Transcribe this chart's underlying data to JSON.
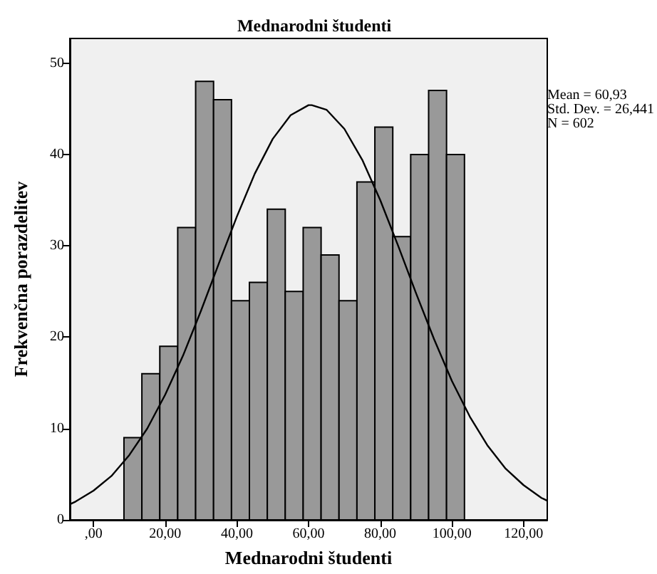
{
  "chart_data": {
    "type": "histogram",
    "title": "Mednarodni študenti",
    "xlabel": "Mednarodni študenti",
    "ylabel": "Frekvenčna porazdelitev",
    "annotations": [
      "Mean = 60,93\nStd. Dev. = 26,441\nN = 602"
    ],
    "xlim": [
      -6.6,
      126.6
    ],
    "xticks": [
      {
        "value": 0,
        "label": ",00"
      },
      {
        "value": 20,
        "label": "20,00"
      },
      {
        "value": 40,
        "label": "40,00"
      },
      {
        "value": 60,
        "label": "60,00"
      },
      {
        "value": 80,
        "label": "80,00"
      },
      {
        "value": 100,
        "label": "100,00"
      },
      {
        "value": 120,
        "label": "120,00"
      }
    ],
    "ylim": [
      0,
      52.7
    ],
    "yticks": [
      0,
      10,
      20,
      30,
      40,
      50
    ],
    "grid": false,
    "series": [
      {
        "color": "#999999",
        "bins": [
          8.5,
          13.5,
          18.5,
          23.5,
          28.5,
          33.5,
          38.5,
          43.5,
          48.5,
          53.5,
          58.5,
          63.5,
          68.5,
          73.5,
          78.5,
          83.5,
          88.5,
          93.5,
          98.5,
          103.5
        ],
        "values": [
          9,
          16,
          19,
          32,
          48,
          46,
          24,
          26,
          34,
          25,
          32,
          29,
          24,
          37,
          43,
          31,
          40,
          47,
          40
        ]
      },
      {
        "type": "line",
        "color": "#000000",
        "marker": "none",
        "x": [
          -6.6,
          -5,
          0,
          5,
          10,
          15,
          20,
          25,
          30,
          35,
          40,
          45,
          50,
          55,
          60,
          60.9,
          65,
          70,
          75,
          80,
          85,
          90,
          95,
          100,
          105,
          110,
          115,
          120,
          125,
          126.6
        ],
        "values": [
          1.7,
          2,
          3.2,
          4.8,
          7.1,
          10,
          13.7,
          18,
          22.9,
          28.1,
          33.2,
          37.9,
          41.7,
          44.3,
          45.4,
          45.4,
          44.9,
          42.8,
          39.4,
          35,
          30,
          24.8,
          19.8,
          15.2,
          11.3,
          8.1,
          5.6,
          3.8,
          2.4,
          2.1
        ]
      }
    ]
  }
}
